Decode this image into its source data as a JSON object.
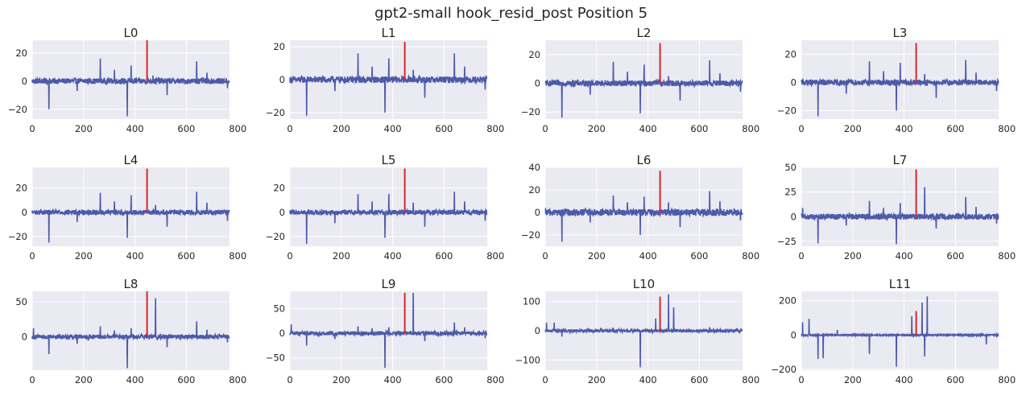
{
  "figure": {
    "suptitle": "gpt2-small hook_resid_post Position 5"
  },
  "style": {
    "background": "#eaeaf2",
    "grid_color": "#ffffff",
    "series_color": "#4c5aa8",
    "highlight_color": "#d62728",
    "tick_color": "#262626"
  },
  "chart_data": [
    {
      "type": "line",
      "title": "L0",
      "xlim": [
        0,
        768
      ],
      "ylim": [
        -27,
        29
      ],
      "xticks": [
        0,
        200,
        400,
        600,
        800
      ],
      "yticks": [
        -20,
        0,
        20
      ],
      "highlight": {
        "x": 447,
        "y0": 0,
        "y1": 29
      },
      "baseline_noise": 2,
      "spikes": [
        {
          "x": 65,
          "y": -20
        },
        {
          "x": 175,
          "y": -7
        },
        {
          "x": 265,
          "y": 16
        },
        {
          "x": 320,
          "y": 8
        },
        {
          "x": 370,
          "y": -25
        },
        {
          "x": 385,
          "y": 11
        },
        {
          "x": 470,
          "y": 4
        },
        {
          "x": 525,
          "y": -10
        },
        {
          "x": 640,
          "y": 14
        },
        {
          "x": 680,
          "y": 6
        },
        {
          "x": 760,
          "y": -5
        }
      ]
    },
    {
      "type": "line",
      "title": "L1",
      "xlim": [
        0,
        768
      ],
      "ylim": [
        -24,
        24
      ],
      "xticks": [
        0,
        200,
        400,
        600,
        800
      ],
      "yticks": [
        -20,
        0,
        20
      ],
      "highlight": {
        "x": 447,
        "y0": 0,
        "y1": 23
      },
      "baseline_noise": 2,
      "spikes": [
        {
          "x": 65,
          "y": -22
        },
        {
          "x": 175,
          "y": -7
        },
        {
          "x": 265,
          "y": 16
        },
        {
          "x": 320,
          "y": 8
        },
        {
          "x": 370,
          "y": -20
        },
        {
          "x": 385,
          "y": 13
        },
        {
          "x": 480,
          "y": 6
        },
        {
          "x": 525,
          "y": -11
        },
        {
          "x": 640,
          "y": 16
        },
        {
          "x": 680,
          "y": 8
        },
        {
          "x": 760,
          "y": -6
        }
      ]
    },
    {
      "type": "line",
      "title": "L2",
      "xlim": [
        0,
        768
      ],
      "ylim": [
        -25,
        30
      ],
      "xticks": [
        0,
        200,
        400,
        600,
        800
      ],
      "yticks": [
        -20,
        0,
        20
      ],
      "highlight": {
        "x": 447,
        "y0": 0,
        "y1": 28
      },
      "baseline_noise": 2,
      "spikes": [
        {
          "x": 65,
          "y": -24
        },
        {
          "x": 175,
          "y": -8
        },
        {
          "x": 265,
          "y": 15
        },
        {
          "x": 320,
          "y": 8
        },
        {
          "x": 370,
          "y": -21
        },
        {
          "x": 385,
          "y": 13
        },
        {
          "x": 480,
          "y": 5
        },
        {
          "x": 525,
          "y": -12
        },
        {
          "x": 640,
          "y": 16
        },
        {
          "x": 680,
          "y": 7
        },
        {
          "x": 760,
          "y": -6
        }
      ]
    },
    {
      "type": "line",
      "title": "L3",
      "xlim": [
        0,
        768
      ],
      "ylim": [
        -26,
        30
      ],
      "xticks": [
        0,
        200,
        400,
        600,
        800
      ],
      "yticks": [
        -20,
        0,
        20
      ],
      "highlight": {
        "x": 447,
        "y0": 0,
        "y1": 28
      },
      "baseline_noise": 2,
      "spikes": [
        {
          "x": 65,
          "y": -24
        },
        {
          "x": 175,
          "y": -8
        },
        {
          "x": 265,
          "y": 15
        },
        {
          "x": 320,
          "y": 8
        },
        {
          "x": 370,
          "y": -20
        },
        {
          "x": 385,
          "y": 14
        },
        {
          "x": 480,
          "y": 6
        },
        {
          "x": 525,
          "y": -11
        },
        {
          "x": 640,
          "y": 16
        },
        {
          "x": 680,
          "y": 7
        },
        {
          "x": 760,
          "y": -6
        }
      ]
    },
    {
      "type": "line",
      "title": "L4",
      "xlim": [
        0,
        768
      ],
      "ylim": [
        -28,
        37
      ],
      "xticks": [
        0,
        200,
        400,
        600,
        800
      ],
      "yticks": [
        -20,
        0,
        20
      ],
      "highlight": {
        "x": 447,
        "y0": 0,
        "y1": 36
      },
      "baseline_noise": 2,
      "spikes": [
        {
          "x": 65,
          "y": -25
        },
        {
          "x": 175,
          "y": -8
        },
        {
          "x": 265,
          "y": 16
        },
        {
          "x": 320,
          "y": 9
        },
        {
          "x": 370,
          "y": -21
        },
        {
          "x": 385,
          "y": 14
        },
        {
          "x": 480,
          "y": 6
        },
        {
          "x": 525,
          "y": -12
        },
        {
          "x": 640,
          "y": 17
        },
        {
          "x": 680,
          "y": 8
        },
        {
          "x": 760,
          "y": -7
        }
      ]
    },
    {
      "type": "line",
      "title": "L5",
      "xlim": [
        0,
        768
      ],
      "ylim": [
        -28,
        37
      ],
      "xticks": [
        0,
        200,
        400,
        600,
        800
      ],
      "yticks": [
        -20,
        0,
        20
      ],
      "highlight": {
        "x": 447,
        "y0": 0,
        "y1": 36
      },
      "baseline_noise": 2,
      "spikes": [
        {
          "x": 65,
          "y": -26
        },
        {
          "x": 175,
          "y": -9
        },
        {
          "x": 265,
          "y": 15
        },
        {
          "x": 320,
          "y": 9
        },
        {
          "x": 370,
          "y": -21
        },
        {
          "x": 385,
          "y": 15
        },
        {
          "x": 480,
          "y": 8
        },
        {
          "x": 525,
          "y": -12
        },
        {
          "x": 640,
          "y": 17
        },
        {
          "x": 680,
          "y": 9
        },
        {
          "x": 760,
          "y": -7
        }
      ]
    },
    {
      "type": "line",
      "title": "L6",
      "xlim": [
        0,
        768
      ],
      "ylim": [
        -30,
        40
      ],
      "xticks": [
        0,
        200,
        400,
        600,
        800
      ],
      "yticks": [
        -20,
        0,
        20,
        40
      ],
      "highlight": {
        "x": 447,
        "y0": 0,
        "y1": 37
      },
      "baseline_noise": 3,
      "spikes": [
        {
          "x": 65,
          "y": -26
        },
        {
          "x": 175,
          "y": -9
        },
        {
          "x": 265,
          "y": 15
        },
        {
          "x": 320,
          "y": 9
        },
        {
          "x": 370,
          "y": -20
        },
        {
          "x": 385,
          "y": 14
        },
        {
          "x": 480,
          "y": 9
        },
        {
          "x": 525,
          "y": -13
        },
        {
          "x": 640,
          "y": 19
        },
        {
          "x": 680,
          "y": 10
        },
        {
          "x": 760,
          "y": -7
        }
      ]
    },
    {
      "type": "line",
      "title": "L7",
      "xlim": [
        0,
        768
      ],
      "ylim": [
        -30,
        50
      ],
      "xticks": [
        0,
        200,
        400,
        600,
        800
      ],
      "yticks": [
        -25,
        0,
        25,
        50
      ],
      "highlight": {
        "x": 447,
        "y0": 0,
        "y1": 48
      },
      "baseline_noise": 3,
      "spikes": [
        {
          "x": 5,
          "y": 9
        },
        {
          "x": 65,
          "y": -27
        },
        {
          "x": 175,
          "y": -9
        },
        {
          "x": 265,
          "y": 16
        },
        {
          "x": 320,
          "y": 9
        },
        {
          "x": 370,
          "y": -28
        },
        {
          "x": 385,
          "y": 14
        },
        {
          "x": 480,
          "y": 30
        },
        {
          "x": 525,
          "y": -12
        },
        {
          "x": 640,
          "y": 20
        },
        {
          "x": 680,
          "y": 10
        },
        {
          "x": 760,
          "y": -7
        }
      ]
    },
    {
      "type": "line",
      "title": "L8",
      "xlim": [
        0,
        768
      ],
      "ylim": [
        -48,
        65
      ],
      "xticks": [
        0,
        200,
        400,
        600,
        800
      ],
      "yticks": [
        0,
        50
      ],
      "highlight": {
        "x": 447,
        "y0": 0,
        "y1": 65
      },
      "baseline_noise": 3,
      "spikes": [
        {
          "x": 5,
          "y": 12
        },
        {
          "x": 65,
          "y": -25
        },
        {
          "x": 175,
          "y": -10
        },
        {
          "x": 265,
          "y": 15
        },
        {
          "x": 320,
          "y": 9
        },
        {
          "x": 370,
          "y": -45
        },
        {
          "x": 385,
          "y": 12
        },
        {
          "x": 480,
          "y": 55
        },
        {
          "x": 525,
          "y": -15
        },
        {
          "x": 640,
          "y": 22
        },
        {
          "x": 680,
          "y": 10
        },
        {
          "x": 760,
          "y": -8
        }
      ]
    },
    {
      "type": "line",
      "title": "L9",
      "xlim": [
        0,
        768
      ],
      "ylim": [
        -75,
        85
      ],
      "xticks": [
        0,
        200,
        400,
        600,
        800
      ],
      "yticks": [
        -50,
        0,
        50
      ],
      "highlight": {
        "x": 447,
        "y0": 0,
        "y1": 82
      },
      "baseline_noise": 4,
      "spikes": [
        {
          "x": 5,
          "y": 18
        },
        {
          "x": 65,
          "y": -25
        },
        {
          "x": 175,
          "y": -12
        },
        {
          "x": 265,
          "y": 14
        },
        {
          "x": 320,
          "y": 10
        },
        {
          "x": 370,
          "y": -70
        },
        {
          "x": 385,
          "y": 12
        },
        {
          "x": 480,
          "y": 82
        },
        {
          "x": 525,
          "y": -16
        },
        {
          "x": 640,
          "y": 22
        },
        {
          "x": 680,
          "y": 12
        },
        {
          "x": 760,
          "y": -10
        }
      ]
    },
    {
      "type": "line",
      "title": "L10",
      "xlim": [
        0,
        768
      ],
      "ylim": [
        -135,
        135
      ],
      "xticks": [
        0,
        200,
        400,
        600,
        800
      ],
      "yticks": [
        -100,
        0,
        100
      ],
      "highlight": {
        "x": 447,
        "y0": 0,
        "y1": 117
      },
      "baseline_noise": 5,
      "spikes": [
        {
          "x": 5,
          "y": 28
        },
        {
          "x": 35,
          "y": 28
        },
        {
          "x": 65,
          "y": -20
        },
        {
          "x": 265,
          "y": 10
        },
        {
          "x": 370,
          "y": -125
        },
        {
          "x": 430,
          "y": 42
        },
        {
          "x": 480,
          "y": 125
        },
        {
          "x": 500,
          "y": 80
        },
        {
          "x": 640,
          "y": 12
        }
      ]
    },
    {
      "type": "line",
      "title": "L11",
      "xlim": [
        0,
        768
      ],
      "ylim": [
        -205,
        255
      ],
      "xticks": [
        0,
        200,
        400,
        600,
        800
      ],
      "yticks": [
        -200,
        0,
        200
      ],
      "highlight": {
        "x": 447,
        "y0": 0,
        "y1": 140
      },
      "baseline_noise": 4,
      "spikes": [
        {
          "x": 5,
          "y": 75
        },
        {
          "x": 30,
          "y": 95
        },
        {
          "x": 65,
          "y": -140
        },
        {
          "x": 85,
          "y": -135
        },
        {
          "x": 140,
          "y": 30
        },
        {
          "x": 265,
          "y": -110
        },
        {
          "x": 370,
          "y": -185
        },
        {
          "x": 430,
          "y": 110
        },
        {
          "x": 470,
          "y": 190
        },
        {
          "x": 490,
          "y": 225
        },
        {
          "x": 480,
          "y": -125
        },
        {
          "x": 720,
          "y": -55
        }
      ]
    }
  ]
}
